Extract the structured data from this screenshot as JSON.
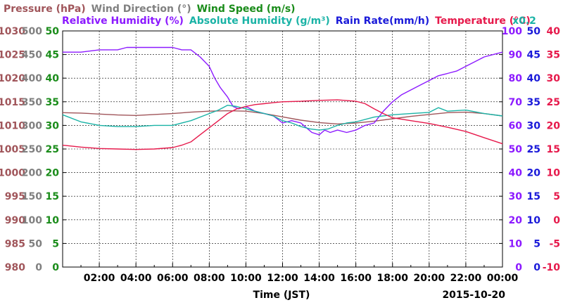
{
  "chart_data": {
    "type": "line",
    "legend": [
      {
        "name": "Pressure (hPa)",
        "color": "#a0555a",
        "row": 1
      },
      {
        "name": "Wind Direction (°)",
        "color": "#808080",
        "row": 1
      },
      {
        "name": "Wind Speed (m/s)",
        "color": "#1a8c1a",
        "row": 1
      },
      {
        "name": "Relative Humidity (%)",
        "color": "#8c1aff",
        "row": 2
      },
      {
        "name": "Absolute Humidity (g/m³)",
        "color": "#1ab3a6",
        "row": 2
      },
      {
        "name": "Rain Rate(mm/h)",
        "color": "#1a1ad9",
        "row": 2
      },
      {
        "name": "Temperature (°C)",
        "color": "#e6194b",
        "row": 2
      }
    ],
    "multiplier_label": "x0.2",
    "xlabel": "Time (JST)",
    "date_label": "2015-10-20",
    "x_range": [
      0,
      24
    ],
    "x_ticks": [
      "02:00",
      "04:00",
      "06:00",
      "08:00",
      "10:00",
      "12:00",
      "14:00",
      "16:00",
      "18:00",
      "20:00",
      "22:00",
      "00:00"
    ],
    "axes": {
      "pressure": {
        "color": "#a0555a",
        "range": [
          980,
          1030
        ],
        "ticks": [
          "980",
          "985",
          "990",
          "995",
          "1000",
          "1005",
          "1010",
          "1015",
          "1020",
          "1025",
          "1030"
        ]
      },
      "wind_direction": {
        "color": "#808080",
        "range": [
          0,
          500
        ],
        "ticks": [
          "0",
          "50",
          "100",
          "150",
          "200",
          "250",
          "300",
          "350",
          "400",
          "450",
          "500"
        ]
      },
      "wind_speed": {
        "color": "#1a8c1a",
        "range": [
          0,
          50
        ],
        "ticks": [
          "0",
          "5",
          "10",
          "15",
          "20",
          "25",
          "30",
          "35",
          "40",
          "45",
          "50"
        ]
      },
      "humidity": {
        "color": "#8c1aff",
        "range": [
          0,
          100
        ],
        "ticks": [
          "0",
          "10",
          "20",
          "30",
          "40",
          "50",
          "60",
          "70",
          "80",
          "90",
          "100"
        ]
      },
      "rain_rate": {
        "color": "#1a1ad9",
        "range": [
          0,
          50
        ],
        "ticks": [
          "0",
          "5",
          "10",
          "15",
          "20",
          "25",
          "30",
          "35",
          "40",
          "45",
          "50"
        ]
      },
      "temperature": {
        "color": "#e6194b",
        "range": [
          -10,
          40
        ],
        "ticks": [
          "-10",
          "-5",
          "0",
          "5",
          "10",
          "15",
          "20",
          "25",
          "30",
          "35",
          "40"
        ]
      }
    },
    "series": [
      {
        "name": "Pressure (hPa)",
        "axis": "pressure",
        "color": "#a0555a",
        "x": [
          0,
          1,
          2,
          3,
          4,
          5,
          6,
          7,
          8,
          9,
          10,
          11,
          12,
          13,
          14,
          15,
          16,
          17,
          18,
          19,
          20,
          21,
          22,
          23,
          24
        ],
        "y": [
          1012.7,
          1012.6,
          1012.4,
          1012.2,
          1012.1,
          1012.3,
          1012.5,
          1012.8,
          1013.0,
          1013.1,
          1013.0,
          1012.5,
          1011.8,
          1011.1,
          1010.6,
          1010.3,
          1010.5,
          1010.9,
          1011.4,
          1011.9,
          1012.3,
          1012.7,
          1012.8,
          1012.5,
          1012.0
        ]
      },
      {
        "name": "Relative Humidity (%)",
        "axis": "humidity",
        "color": "#8c1aff",
        "x": [
          0,
          0.5,
          1,
          2,
          3,
          3.5,
          4,
          5,
          6,
          6.5,
          7,
          7.5,
          8,
          8.3,
          8.6,
          9,
          9.3,
          9.6,
          10,
          10.5,
          11,
          11.5,
          12,
          12.5,
          13,
          13.3,
          13.6,
          14,
          14.3,
          14.6,
          15,
          15.5,
          16,
          16.5,
          17,
          17.5,
          18,
          18.5,
          19,
          19.5,
          20,
          20.5,
          21,
          21.5,
          22,
          22.5,
          23,
          23.5,
          24
        ],
        "y": [
          91,
          91,
          91,
          92,
          92,
          93,
          93,
          93,
          93,
          92,
          92,
          89,
          85,
          80,
          76,
          72,
          68,
          67,
          68,
          66,
          65,
          64,
          61,
          62,
          61,
          59,
          57,
          56,
          58,
          57,
          58,
          57,
          58,
          60,
          61,
          66,
          70,
          73,
          75,
          77,
          79,
          81,
          82,
          83,
          85,
          87,
          89,
          90,
          91
        ]
      },
      {
        "name": "Absolute Humidity (g/m³)",
        "axis": "humidity",
        "color": "#1ab3a6",
        "scale": 5,
        "x": [
          0,
          1,
          2,
          3,
          4,
          5,
          6,
          7,
          8,
          8.5,
          9,
          9.5,
          10,
          10.5,
          11,
          11.5,
          12,
          12.5,
          13,
          13.5,
          14,
          14.5,
          15,
          15.5,
          16,
          17,
          18,
          19,
          20,
          20.5,
          21,
          22,
          23,
          24
        ],
        "y": [
          12.9,
          12.3,
          12.0,
          11.9,
          11.9,
          12.0,
          12.0,
          12.4,
          13.0,
          13.3,
          13.7,
          13.6,
          13.4,
          13.2,
          13.0,
          12.8,
          12.4,
          12.2,
          11.9,
          11.7,
          11.6,
          11.7,
          12.0,
          12.2,
          12.3,
          12.7,
          12.9,
          13.0,
          13.1,
          13.5,
          13.2,
          13.3,
          13.0,
          12.8
        ]
      },
      {
        "name": "Temperature (°C)",
        "axis": "temperature",
        "color": "#e6194b",
        "x": [
          0,
          1,
          2,
          3,
          4,
          5,
          6,
          6.5,
          7,
          7.5,
          8,
          8.5,
          9,
          9.5,
          10,
          10.5,
          11,
          11.5,
          12,
          13,
          14,
          15,
          16,
          16.5,
          17,
          17.5,
          18,
          19,
          20,
          21,
          22,
          23,
          24
        ],
        "y": [
          15.8,
          15.4,
          15.1,
          15.0,
          14.9,
          15.0,
          15.3,
          15.8,
          16.5,
          18.0,
          19.5,
          21.0,
          22.5,
          23.5,
          24.0,
          24.4,
          24.6,
          24.8,
          25.0,
          25.1,
          25.3,
          25.4,
          25.1,
          24.6,
          23.5,
          22.5,
          21.6,
          21.0,
          20.4,
          19.6,
          18.7,
          17.4,
          16.1
        ]
      }
    ]
  }
}
